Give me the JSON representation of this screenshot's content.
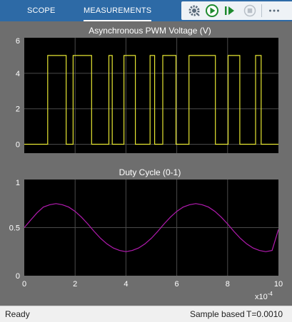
{
  "toolbar": {
    "tabs": [
      {
        "label": "SCOPE",
        "active": false
      },
      {
        "label": "MEASUREMENTS",
        "active": true
      }
    ],
    "buttons": [
      "settings-icon",
      "run-icon",
      "step-forward-icon",
      "stop-icon",
      "more-icon"
    ]
  },
  "colors": {
    "plot_bg": "#000000",
    "panel_bg": "#6e6e6e",
    "grid": "#4a4a4a",
    "text": "#ffffff",
    "pwm_line": "#e6e632",
    "duty_line": "#b31bb0",
    "toolbar_bg": "#2d6aa6"
  },
  "chart_data": [
    {
      "type": "line",
      "title": "Asynchronous PWM Voltage (V)",
      "xlim": [
        0,
        10
      ],
      "ylim": [
        -0.5,
        6
      ],
      "yticks": [
        "0",
        "2",
        "4",
        "6"
      ],
      "ytick_values": [
        0,
        2,
        4,
        6
      ],
      "grid": true,
      "series": [
        {
          "x": [
            0,
            0.92,
            0.92,
            1.65,
            1.65,
            1.92,
            1.92,
            2.65,
            2.65,
            3.33,
            3.33,
            3.46,
            3.46,
            3.92,
            3.92,
            4.37,
            4.37,
            4.95,
            4.95,
            5.13,
            5.13,
            5.45,
            5.45,
            5.97,
            5.97,
            6.48,
            6.48,
            7.52,
            7.52,
            8.02,
            8.02,
            8.48,
            8.48,
            9.1,
            9.1,
            9.32,
            9.32,
            10
          ],
          "y": [
            0,
            0,
            5,
            5,
            0,
            0,
            5,
            5,
            0,
            0,
            5,
            5,
            0,
            0,
            5,
            5,
            0,
            0,
            5,
            5,
            0,
            0,
            5,
            5,
            0,
            0,
            5,
            5,
            0,
            0,
            5,
            5,
            0,
            0,
            5,
            5,
            0,
            0
          ]
        }
      ]
    },
    {
      "type": "line",
      "title": "Duty Cycle (0-1)",
      "xlim": [
        0,
        10
      ],
      "ylim": [
        0,
        1
      ],
      "xticks": [
        "0",
        "2",
        "4",
        "6",
        "8",
        "10"
      ],
      "xtick_values": [
        0,
        2,
        4,
        6,
        8,
        10
      ],
      "yticks": [
        "0",
        "0.5",
        "1"
      ],
      "ytick_values": [
        0,
        0.5,
        1
      ],
      "x_multiplier_base": "x10",
      "x_multiplier_exp": "-4",
      "grid": true,
      "series": [
        {
          "x": [
            0,
            0.25,
            0.5,
            0.75,
            1,
            1.25,
            1.5,
            1.75,
            2,
            2.25,
            2.5,
            2.75,
            3,
            3.25,
            3.5,
            3.75,
            4,
            4.25,
            4.5,
            4.75,
            5,
            5.25,
            5.5,
            5.75,
            6,
            6.25,
            6.5,
            6.75,
            7,
            7.25,
            7.5,
            7.75,
            8,
            8.25,
            8.5,
            8.75,
            9,
            9.25,
            9.5,
            9.75,
            10
          ],
          "y": [
            0.5,
            0.578,
            0.653,
            0.713,
            0.738,
            0.75,
            0.738,
            0.713,
            0.669,
            0.609,
            0.538,
            0.46,
            0.389,
            0.331,
            0.288,
            0.262,
            0.25,
            0.262,
            0.288,
            0.331,
            0.389,
            0.46,
            0.538,
            0.609,
            0.669,
            0.713,
            0.738,
            0.75,
            0.738,
            0.713,
            0.669,
            0.609,
            0.538,
            0.46,
            0.389,
            0.331,
            0.288,
            0.262,
            0.25,
            0.262,
            0.48
          ]
        }
      ]
    }
  ],
  "status": {
    "left": "Ready",
    "mode": "Sample based",
    "time": "T=0.0010"
  }
}
